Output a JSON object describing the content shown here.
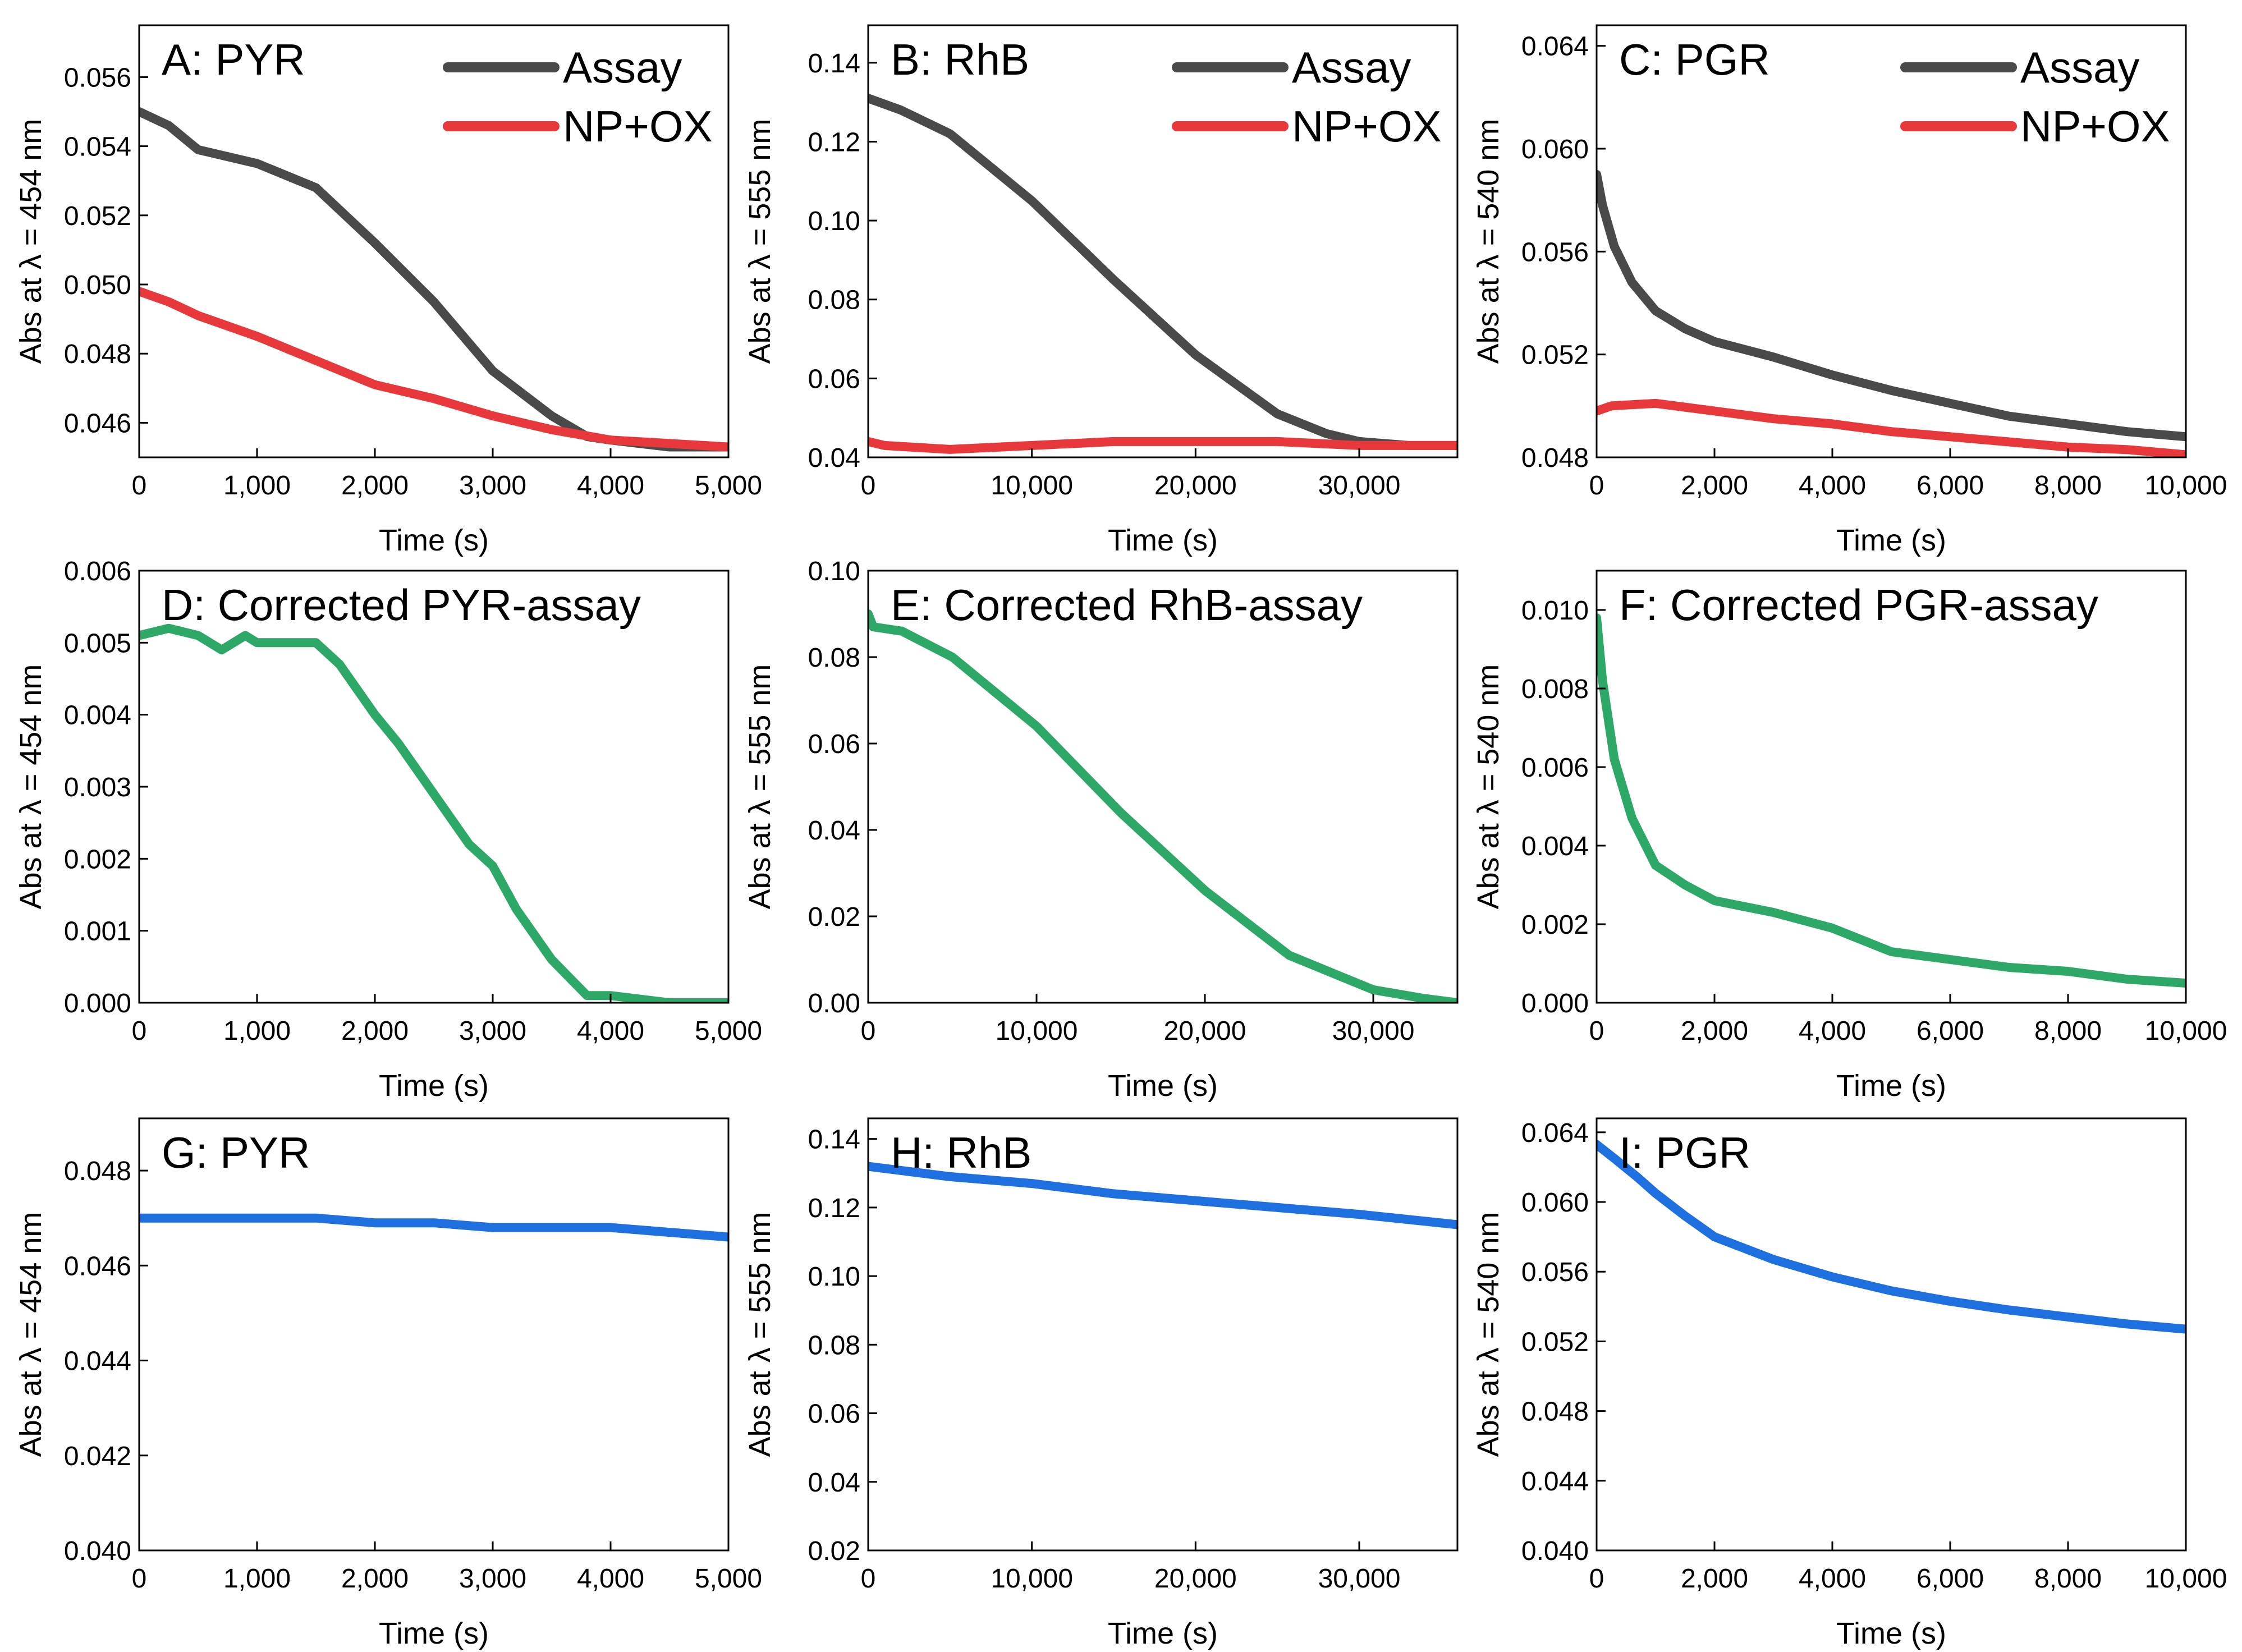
{
  "figure": {
    "charts": [
      {
        "id": "A",
        "title": "A: PYR",
        "type": "line",
        "xlabel": "Time (s)",
        "ylabel": "Abs at λ = 454 nm",
        "xlim": [
          0,
          5000
        ],
        "xticks": [
          0,
          1000,
          2000,
          3000,
          4000,
          5000
        ],
        "xtick_labels": [
          "0",
          "1,000",
          "2,000",
          "3,000",
          "4,000",
          "5,000"
        ],
        "ylim": [
          0.045,
          0.0575
        ],
        "yticks": [
          0.046,
          0.048,
          0.05,
          0.052,
          0.054,
          0.056
        ],
        "ytick_labels": [
          "0.046",
          "0.048",
          "0.050",
          "0.052",
          "0.054",
          "0.056"
        ],
        "legend": "top-right",
        "series": [
          {
            "name": "Assay",
            "color": "#4a4a4a",
            "show_in_legend": true,
            "x": [
              0,
              250,
              500,
              1000,
              1500,
              2000,
              2500,
              3000,
              3500,
              3800,
              4000,
              4500,
              5000
            ],
            "y": [
              0.055,
              0.0546,
              0.0539,
              0.0535,
              0.0528,
              0.0512,
              0.0495,
              0.0475,
              0.0462,
              0.0456,
              0.0455,
              0.0453,
              0.0453
            ]
          },
          {
            "name": "NP+OX",
            "color": "#e8383b",
            "show_in_legend": true,
            "x": [
              0,
              250,
              500,
              1000,
              1500,
              2000,
              2500,
              3000,
              3500,
              4000,
              4500,
              5000
            ],
            "y": [
              0.0498,
              0.0495,
              0.0491,
              0.0485,
              0.0478,
              0.0471,
              0.0467,
              0.0462,
              0.0458,
              0.0455,
              0.0454,
              0.0453
            ]
          }
        ]
      },
      {
        "id": "B",
        "title": "B: RhB",
        "type": "line",
        "xlabel": "Time (s)",
        "ylabel": "Abs at λ = 555 nm",
        "xlim": [
          0,
          36000
        ],
        "xticks": [
          0,
          10000,
          20000,
          30000
        ],
        "xtick_labels": [
          "0",
          "10,000",
          "20,000",
          "30,000"
        ],
        "ylim": [
          0.04,
          0.1495
        ],
        "yticks": [
          0.04,
          0.06,
          0.08,
          0.1,
          0.12,
          0.14
        ],
        "ytick_labels": [
          "0.04",
          "0.06",
          "0.08",
          "0.10",
          "0.12",
          "0.14"
        ],
        "legend": "top-right",
        "series": [
          {
            "name": "Assay",
            "color": "#4a4a4a",
            "show_in_legend": true,
            "x": [
              0,
              2000,
              5000,
              10000,
              15000,
              20000,
              25000,
              28000,
              30000,
              33000,
              36000
            ],
            "y": [
              0.131,
              0.128,
              0.122,
              0.105,
              0.085,
              0.066,
              0.051,
              0.046,
              0.044,
              0.043,
              0.043
            ]
          },
          {
            "name": "NP+OX",
            "color": "#e8383b",
            "show_in_legend": true,
            "x": [
              0,
              1000,
              5000,
              10000,
              15000,
              20000,
              25000,
              30000,
              36000
            ],
            "y": [
              0.044,
              0.043,
              0.042,
              0.043,
              0.044,
              0.044,
              0.044,
              0.043,
              0.043
            ]
          }
        ]
      },
      {
        "id": "C",
        "title": "C: PGR",
        "type": "line",
        "xlabel": "Time (s)",
        "ylabel": "Abs at λ = 540 nm",
        "xlim": [
          0,
          10000
        ],
        "xticks": [
          0,
          2000,
          4000,
          6000,
          8000,
          10000
        ],
        "xtick_labels": [
          "0",
          "2,000",
          "4,000",
          "6,000",
          "8,000",
          "10,000"
        ],
        "ylim": [
          0.048,
          0.0648
        ],
        "yticks": [
          0.048,
          0.052,
          0.056,
          0.06,
          0.064
        ],
        "ytick_labels": [
          "0.048",
          "0.052",
          "0.056",
          "0.060",
          "0.064"
        ],
        "legend": "top-right",
        "series": [
          {
            "name": "Assay",
            "color": "#4a4a4a",
            "show_in_legend": true,
            "x": [
              0,
              100,
              300,
              600,
              1000,
              1500,
              2000,
              3000,
              4000,
              5000,
              6000,
              7000,
              8000,
              9000,
              10000
            ],
            "y": [
              0.059,
              0.0578,
              0.0562,
              0.0548,
              0.0537,
              0.053,
              0.0525,
              0.0519,
              0.0512,
              0.0506,
              0.0501,
              0.0496,
              0.0493,
              0.049,
              0.0488
            ]
          },
          {
            "name": "NP+OX",
            "color": "#e8383b",
            "show_in_legend": true,
            "x": [
              0,
              250,
              1000,
              2000,
              3000,
              4000,
              5000,
              6000,
              7000,
              8000,
              9000,
              10000
            ],
            "y": [
              0.0498,
              0.05,
              0.0501,
              0.0498,
              0.0495,
              0.0493,
              0.049,
              0.0488,
              0.0486,
              0.0484,
              0.0483,
              0.0481
            ]
          }
        ]
      },
      {
        "id": "D",
        "title": "D: Corrected PYR-assay",
        "type": "line",
        "xlabel": "Time (s)",
        "ylabel": "Abs  at λ = 454 nm",
        "xlim": [
          0,
          5000
        ],
        "xticks": [
          0,
          1000,
          2000,
          3000,
          4000,
          5000
        ],
        "xtick_labels": [
          "0",
          "1,000",
          "2,000",
          "3,000",
          "4,000",
          "5,000"
        ],
        "ylim": [
          0,
          0.006
        ],
        "yticks": [
          0,
          0.001,
          0.002,
          0.003,
          0.004,
          0.005,
          0.006
        ],
        "ytick_labels": [
          "0.000",
          "0.001",
          "0.002",
          "0.003",
          "0.004",
          "0.005",
          "0.006"
        ],
        "legend": "none",
        "series": [
          {
            "name": "Corrected PYR-assay",
            "color": "#2ea866",
            "show_in_legend": false,
            "x": [
              0,
              250,
              500,
              700,
              900,
              1000,
              1200,
              1500,
              1700,
              2000,
              2200,
              2500,
              2800,
              3000,
              3200,
              3500,
              3800,
              4000,
              4500,
              5000
            ],
            "y": [
              0.0051,
              0.0052,
              0.0051,
              0.0049,
              0.0051,
              0.005,
              0.005,
              0.005,
              0.0047,
              0.004,
              0.0036,
              0.0029,
              0.0022,
              0.0019,
              0.0013,
              0.0006,
              0.0001,
              0.0001,
              0.0,
              0.0
            ]
          }
        ]
      },
      {
        "id": "E",
        "title": "E: Corrected RhB-assay",
        "type": "line",
        "xlabel": "Time (s)",
        "ylabel": "Abs at λ = 555 nm",
        "xlim": [
          0,
          35000
        ],
        "xticks": [
          0,
          10000,
          20000,
          30000
        ],
        "xtick_labels": [
          "0",
          "10,000",
          "20,000",
          "30,000"
        ],
        "ylim": [
          0,
          0.1
        ],
        "yticks": [
          0,
          0.02,
          0.04,
          0.06,
          0.08,
          0.1
        ],
        "ytick_labels": [
          "0.00",
          "0.02",
          "0.04",
          "0.06",
          "0.08",
          "0.10"
        ],
        "legend": "none",
        "series": [
          {
            "name": "Corrected RhB-assay",
            "color": "#2ea866",
            "show_in_legend": false,
            "x": [
              0,
              300,
              2000,
              5000,
              10000,
              15000,
              20000,
              25000,
              30000,
              33000,
              35000
            ],
            "y": [
              0.09,
              0.087,
              0.086,
              0.08,
              0.064,
              0.044,
              0.026,
              0.011,
              0.003,
              0.001,
              0.0
            ]
          }
        ]
      },
      {
        "id": "F",
        "title": "F: Corrected PGR-assay",
        "type": "line",
        "xlabel": "Time (s)",
        "ylabel": "Abs at λ = 540 nm",
        "xlim": [
          0,
          10000
        ],
        "xticks": [
          0,
          2000,
          4000,
          6000,
          8000,
          10000
        ],
        "xtick_labels": [
          "0",
          "2,000",
          "4,000",
          "6,000",
          "8,000",
          "10,000"
        ],
        "ylim": [
          0,
          0.011
        ],
        "yticks": [
          0,
          0.002,
          0.004,
          0.006,
          0.008,
          0.01
        ],
        "ytick_labels": [
          "0.000",
          "0.002",
          "0.004",
          "0.006",
          "0.008",
          "0.010"
        ],
        "legend": "none",
        "series": [
          {
            "name": "Corrected PGR-assay",
            "color": "#2ea866",
            "show_in_legend": false,
            "x": [
              0,
              100,
              300,
              600,
              1000,
              1500,
              2000,
              3000,
              4000,
              5000,
              6000,
              7000,
              8000,
              9000,
              10000
            ],
            "y": [
              0.0098,
              0.0082,
              0.0062,
              0.0047,
              0.0035,
              0.003,
              0.0026,
              0.0023,
              0.0019,
              0.0013,
              0.0011,
              0.0009,
              0.0008,
              0.0006,
              0.0005
            ]
          }
        ]
      },
      {
        "id": "G",
        "title": "G: PYR",
        "type": "line",
        "xlabel": "Time (s)",
        "ylabel": "Abs at λ = 454 nm",
        "xlim": [
          0,
          5000
        ],
        "xticks": [
          0,
          1000,
          2000,
          3000,
          4000,
          5000
        ],
        "xtick_labels": [
          "0",
          "1,000",
          "2,000",
          "3,000",
          "4,000",
          "5,000"
        ],
        "ylim": [
          0.04,
          0.0491
        ],
        "yticks": [
          0.04,
          0.042,
          0.044,
          0.046,
          0.048
        ],
        "ytick_labels": [
          "0.040",
          "0.042",
          "0.044",
          "0.046",
          "0.048"
        ],
        "legend": "none",
        "series": [
          {
            "name": "PYR",
            "color": "#1e6fe0",
            "show_in_legend": false,
            "x": [
              0,
              500,
              1000,
              1500,
              2000,
              2500,
              3000,
              3500,
              4000,
              4500,
              5000
            ],
            "y": [
              0.047,
              0.047,
              0.047,
              0.047,
              0.0469,
              0.0469,
              0.0468,
              0.0468,
              0.0468,
              0.0467,
              0.0466
            ]
          }
        ]
      },
      {
        "id": "H",
        "title": "H: RhB",
        "type": "line",
        "xlabel": "Time (s)",
        "ylabel": "Abs at λ = 555 nm",
        "xlim": [
          0,
          36000
        ],
        "xticks": [
          0,
          10000,
          20000,
          30000
        ],
        "xtick_labels": [
          "0",
          "10,000",
          "20,000",
          "30,000"
        ],
        "ylim": [
          0.02,
          0.146
        ],
        "yticks": [
          0.02,
          0.04,
          0.06,
          0.08,
          0.1,
          0.12,
          0.14
        ],
        "ytick_labels": [
          "0.02",
          "0.04",
          "0.06",
          "0.08",
          "0.10",
          "0.12",
          "0.14"
        ],
        "legend": "none",
        "series": [
          {
            "name": "RhB",
            "color": "#1e6fe0",
            "show_in_legend": false,
            "x": [
              0,
              5000,
              10000,
              15000,
              20000,
              25000,
              30000,
              36000
            ],
            "y": [
              0.132,
              0.129,
              0.127,
              0.124,
              0.122,
              0.12,
              0.118,
              0.115
            ]
          }
        ]
      },
      {
        "id": "I",
        "title": "I: PGR",
        "type": "line",
        "xlabel": "Time (s)",
        "ylabel": "Abs at λ = 540 nm",
        "xlim": [
          0,
          10000
        ],
        "xticks": [
          0,
          2000,
          4000,
          6000,
          8000,
          10000
        ],
        "xtick_labels": [
          "0",
          "2,000",
          "4,000",
          "6,000",
          "8,000",
          "10,000"
        ],
        "ylim": [
          0.04,
          0.0648
        ],
        "yticks": [
          0.04,
          0.044,
          0.048,
          0.052,
          0.056,
          0.06,
          0.064
        ],
        "ytick_labels": [
          "0.040",
          "0.044",
          "0.048",
          "0.052",
          "0.056",
          "0.060",
          "0.064"
        ],
        "legend": "none",
        "series": [
          {
            "name": "PGR",
            "color": "#1e6fe0",
            "show_in_legend": false,
            "x": [
              0,
              300,
              700,
              1000,
              1500,
              2000,
              3000,
              4000,
              5000,
              6000,
              7000,
              8000,
              9000,
              10000
            ],
            "y": [
              0.0633,
              0.0625,
              0.0614,
              0.0605,
              0.0592,
              0.058,
              0.0567,
              0.0557,
              0.0549,
              0.0543,
              0.0538,
              0.0534,
              0.053,
              0.0527
            ]
          }
        ]
      }
    ]
  }
}
